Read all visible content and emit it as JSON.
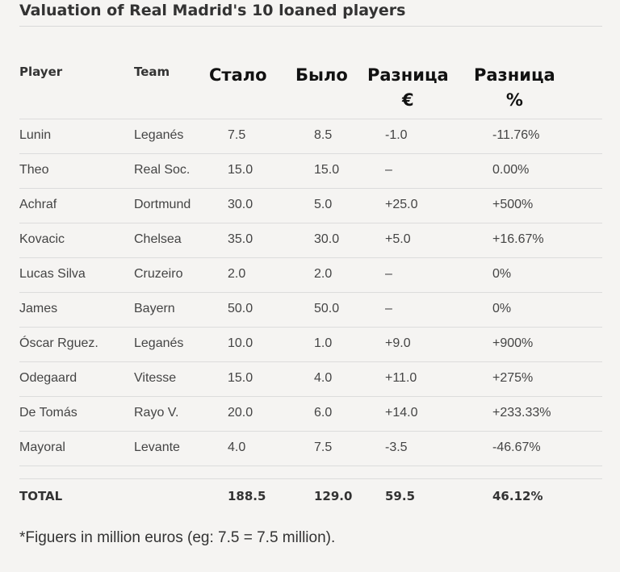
{
  "title": "Valuation of Real Madrid's 10 loaned players",
  "headers": {
    "player": "Player",
    "team": "Team",
    "now": "Стало",
    "before": "Было",
    "diff_eur_line1": "Разница",
    "diff_eur_line2": "€",
    "diff_pct_line1": "Разница",
    "diff_pct_line2": "%"
  },
  "rows": [
    {
      "player": "Lunin",
      "team": "Leganés",
      "now": "7.5",
      "before": "8.5",
      "diff": "-1.0",
      "pct": "-11.76%"
    },
    {
      "player": "Theo",
      "team": "Real Soc.",
      "now": "15.0",
      "before": "15.0",
      "diff": "–",
      "pct": "0.00%"
    },
    {
      "player": "Achraf",
      "team": "Dortmund",
      "now": "30.0",
      "before": "5.0",
      "diff": "+25.0",
      "pct": "+500%"
    },
    {
      "player": "Kovacic",
      "team": "Chelsea",
      "now": "35.0",
      "before": "30.0",
      "diff": "+5.0",
      "pct": "+16.67%"
    },
    {
      "player": "Lucas Silva",
      "team": "Cruzeiro",
      "now": "2.0",
      "before": "2.0",
      "diff": "–",
      "pct": "0%"
    },
    {
      "player": "James",
      "team": "Bayern",
      "now": "50.0",
      "before": "50.0",
      "diff": "–",
      "pct": "0%"
    },
    {
      "player": "Óscar Rguez.",
      "team": "Leganés",
      "now": "10.0",
      "before": "1.0",
      "diff": "+9.0",
      "pct": "+900%"
    },
    {
      "player": "Odegaard",
      "team": "Vitesse",
      "now": "15.0",
      "before": "4.0",
      "diff": "+11.0",
      "pct": "+275%"
    },
    {
      "player": "De Tomás",
      "team": "Rayo V.",
      "now": "20.0",
      "before": "6.0",
      "diff": "+14.0",
      "pct": "+233.33%"
    },
    {
      "player": "Mayoral",
      "team": "Levante",
      "now": "4.0",
      "before": "7.5",
      "diff": "-3.5",
      "pct": "-46.67%"
    }
  ],
  "total": {
    "label": "TOTAL",
    "now": "188.5",
    "before": "129.0",
    "diff": "59.5",
    "pct": "46.12%"
  },
  "footnote": "*Figuers in million euros (eg: 7.5 = 7.5 million)."
}
